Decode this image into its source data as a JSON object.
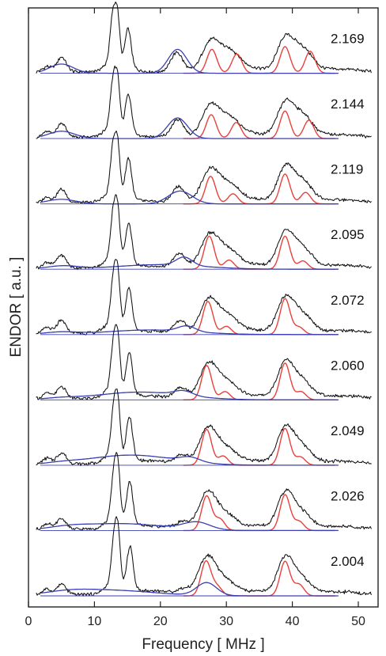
{
  "chart_data": {
    "type": "line",
    "xlabel": "Frequency [ MHz ]",
    "ylabel": "ENDOR [ a.u. ]",
    "xlim": [
      0,
      53
    ],
    "xticks": [
      0,
      10,
      20,
      30,
      40,
      50
    ],
    "grid": false,
    "colors": {
      "experimental": "#111111",
      "simulation_red": "#e8413c",
      "simulation_blue": "#3a3fb0",
      "frame": "#222222"
    },
    "experimental_peaks_mhz": [
      5,
      13,
      15,
      22.5,
      28,
      31,
      39,
      42
    ],
    "spectra": [
      {
        "g_value": "2.169",
        "red_peaks": [
          {
            "x": 27.8,
            "h": 0.52
          },
          {
            "x": 31.6,
            "h": 0.42
          },
          {
            "x": 38.9,
            "h": 0.58
          },
          {
            "x": 42.7,
            "h": 0.48
          }
        ],
        "blue": {
          "x": 22.6,
          "w": 1.4,
          "h": 0.52,
          "bx": 5.0,
          "bw": 1.8,
          "bh": 0.2,
          "broad": 0
        }
      },
      {
        "g_value": "2.144",
        "red_peaks": [
          {
            "x": 27.7,
            "h": 0.52
          },
          {
            "x": 31.5,
            "h": 0.35
          },
          {
            "x": 38.9,
            "h": 0.6
          },
          {
            "x": 42.5,
            "h": 0.4
          }
        ],
        "blue": {
          "x": 22.6,
          "w": 1.5,
          "h": 0.45,
          "bx": 5.0,
          "bw": 2.0,
          "bh": 0.16,
          "broad": 0
        }
      },
      {
        "g_value": "2.119",
        "red_peaks": [
          {
            "x": 27.6,
            "h": 0.6
          },
          {
            "x": 31.0,
            "h": 0.22
          },
          {
            "x": 38.9,
            "h": 0.65
          },
          {
            "x": 42.0,
            "h": 0.25
          }
        ],
        "blue": {
          "x": 23.0,
          "w": 1.8,
          "h": 0.28,
          "bx": 5.0,
          "bw": 2.2,
          "bh": 0.1,
          "broad": 0
        }
      },
      {
        "g_value": "2.095",
        "red_peaks": [
          {
            "x": 27.4,
            "h": 0.72
          },
          {
            "x": 30.4,
            "h": 0.2
          },
          {
            "x": 38.9,
            "h": 0.72
          },
          {
            "x": 41.6,
            "h": 0.18
          }
        ],
        "blue": {
          "x": 23.6,
          "w": 1.2,
          "h": 0.18,
          "bx": 5.2,
          "bw": 2.4,
          "bh": 0.07,
          "broad": 0.1
        }
      },
      {
        "g_value": "2.072",
        "red_peaks": [
          {
            "x": 27.2,
            "h": 0.72
          },
          {
            "x": 30.0,
            "h": 0.18
          },
          {
            "x": 38.9,
            "h": 0.78
          },
          {
            "x": 41.0,
            "h": 0.16
          }
        ],
        "blue": {
          "x": 24.0,
          "w": 1.3,
          "h": 0.12,
          "bx": 5.0,
          "bw": 2.5,
          "bh": 0.05,
          "broad": 0.1
        }
      },
      {
        "g_value": "2.060",
        "red_peaks": [
          {
            "x": 27.0,
            "h": 0.75
          },
          {
            "x": 29.8,
            "h": 0.18
          },
          {
            "x": 38.9,
            "h": 0.8
          },
          {
            "x": 41.3,
            "h": 0.18
          }
        ],
        "blue": {
          "x": 23.5,
          "w": 1.4,
          "h": 0.1,
          "bx": 5.0,
          "bw": 2.5,
          "bh": 0.03,
          "broad": 0.17
        }
      },
      {
        "g_value": "2.049",
        "red_peaks": [
          {
            "x": 27.0,
            "h": 0.78
          },
          {
            "x": 29.5,
            "h": 0.2
          },
          {
            "x": 38.9,
            "h": 0.8
          },
          {
            "x": 41.2,
            "h": 0.18
          }
        ],
        "blue": {
          "x": 24.5,
          "w": 1.5,
          "h": 0.1,
          "bx": 5.0,
          "bw": 2.5,
          "bh": 0.03,
          "broad": 0.22
        }
      },
      {
        "g_value": "2.026",
        "red_peaks": [
          {
            "x": 27.0,
            "h": 0.75
          },
          {
            "x": 29.0,
            "h": 0.25
          },
          {
            "x": 38.9,
            "h": 0.78
          },
          {
            "x": 41.0,
            "h": 0.2
          }
        ],
        "blue": {
          "x": 25.5,
          "w": 2.0,
          "h": 0.16,
          "bx": 6.0,
          "bw": 3.0,
          "bh": 0.05,
          "broad": 0.15
        }
      },
      {
        "g_value": "2.004",
        "red_peaks": [
          {
            "x": 26.9,
            "h": 0.75
          },
          {
            "x": 28.6,
            "h": 0.2
          },
          {
            "x": 38.9,
            "h": 0.75
          },
          {
            "x": 41.0,
            "h": 0.25
          }
        ],
        "blue": {
          "x": 27.0,
          "w": 1.5,
          "h": 0.28,
          "bx": 6.0,
          "bw": 3.5,
          "bh": 0.06,
          "broad": 0.12
        }
      }
    ]
  }
}
